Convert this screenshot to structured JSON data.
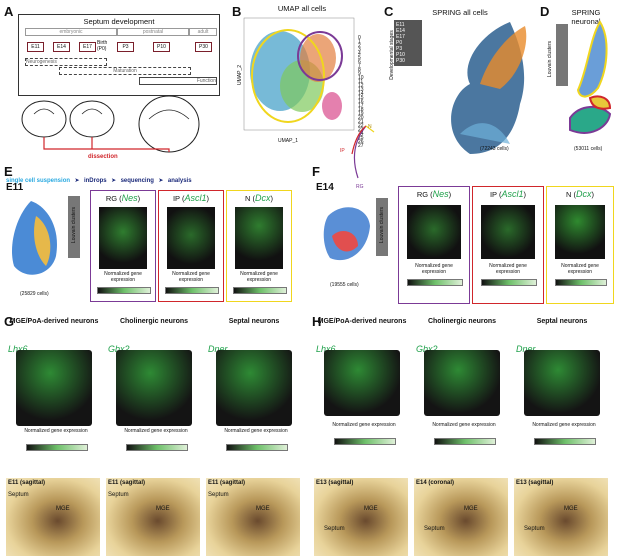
{
  "panels": {
    "A": "A",
    "B": "B",
    "C": "C",
    "D": "D",
    "E": "E",
    "F": "F",
    "G": "G",
    "H": "H"
  },
  "a": {
    "title": "Septum development",
    "periods": [
      "embryonic",
      "postnatal",
      "adult"
    ],
    "stages": [
      "E11",
      "E14",
      "E17",
      "Birth (P0)",
      "P3",
      "P10",
      "P30"
    ],
    "phases": [
      "Neurogenesis",
      "Maturation",
      "Function"
    ],
    "dissection": "dissection",
    "pipeline": [
      "single cell suspension",
      "inDrops",
      "sequencing",
      "analysis"
    ]
  },
  "b": {
    "title": "UMAP all cells",
    "xlabel": "UMAP_1",
    "ylabel": "UMAP_2",
    "ticks": [
      "-5",
      "0",
      "5",
      "10",
      "15"
    ],
    "legend": [
      "0",
      "1",
      "2",
      "3",
      "4",
      "5",
      "6",
      "7",
      "8",
      "9",
      "10",
      "11",
      "12",
      "13",
      "14",
      "15",
      "16",
      "17",
      "18",
      "19",
      "20",
      "21",
      "22",
      "23",
      "24",
      "25",
      "26",
      "27"
    ],
    "inset": [
      "N",
      "IP",
      "RG"
    ]
  },
  "c": {
    "title": "SPRING all cells",
    "axis": "Developmental stages",
    "stages": [
      "E11",
      "E14",
      "E17",
      "P0",
      "P3",
      "P10",
      "P30"
    ],
    "count": "(72243 cells)"
  },
  "d": {
    "title": "SPRING neuronal",
    "axis": "Louvain clusters",
    "count": "(53011 cells)"
  },
  "e": {
    "label": "E11",
    "count": "(25829 cells)",
    "axis": "Louvain clusters",
    "rg": "RG (",
    "rg_gene": "Nes",
    "ip": "IP (",
    "ip_gene": "Ascl1",
    "n": "N (",
    "n_gene": "Dcx",
    "close": ")",
    "bar": "Normalized gene expression"
  },
  "f": {
    "label": "E14",
    "count": "(19555 cells)",
    "axis": "Louvain clusters",
    "rg": "RG (",
    "rg_gene": "Nes",
    "ip": "IP (",
    "ip_gene": "Ascl1",
    "n": "N (",
    "n_gene": "Dcx",
    "close": ")",
    "bar": "Normalized gene expression"
  },
  "g": {
    "cols": [
      "MGE/PoA-derived neurons",
      "Cholinergic neurons",
      "Septal neurons"
    ],
    "genes": [
      "Lhx6",
      "Gbx2",
      "Dner"
    ],
    "bar": "Normalized gene expression",
    "ish": [
      {
        "stage": "E11 (sagittal)",
        "labels": [
          "Septum",
          "MGE"
        ]
      },
      {
        "stage": "E11 (sagittal)",
        "labels": [
          "Septum",
          "MGE"
        ]
      },
      {
        "stage": "E11 (sagittal)",
        "labels": [
          "Septum",
          "MGE"
        ]
      }
    ]
  },
  "h": {
    "cols": [
      "MGE/PoA-derived neurons",
      "Cholinergic neurons",
      "Septal neurons"
    ],
    "genes": [
      "Lhx6",
      "Gbx2",
      "Dner"
    ],
    "bar": "Normalized gene expression",
    "ish": [
      {
        "stage": "E13 (sagittal)",
        "labels": [
          "MGE",
          "Septum"
        ]
      },
      {
        "stage": "E14 (coronal)",
        "labels": [
          "MGE",
          "Septum"
        ]
      },
      {
        "stage": "E13 (sagittal)",
        "labels": [
          "MGE",
          "Septum"
        ]
      }
    ]
  },
  "colors": {
    "purple": "#7b3a96",
    "red": "#d0262b",
    "yellow": "#f0d61e",
    "green": "#1fa04a",
    "navy": "#1b2a7a",
    "cyan": "#29a9e0"
  }
}
